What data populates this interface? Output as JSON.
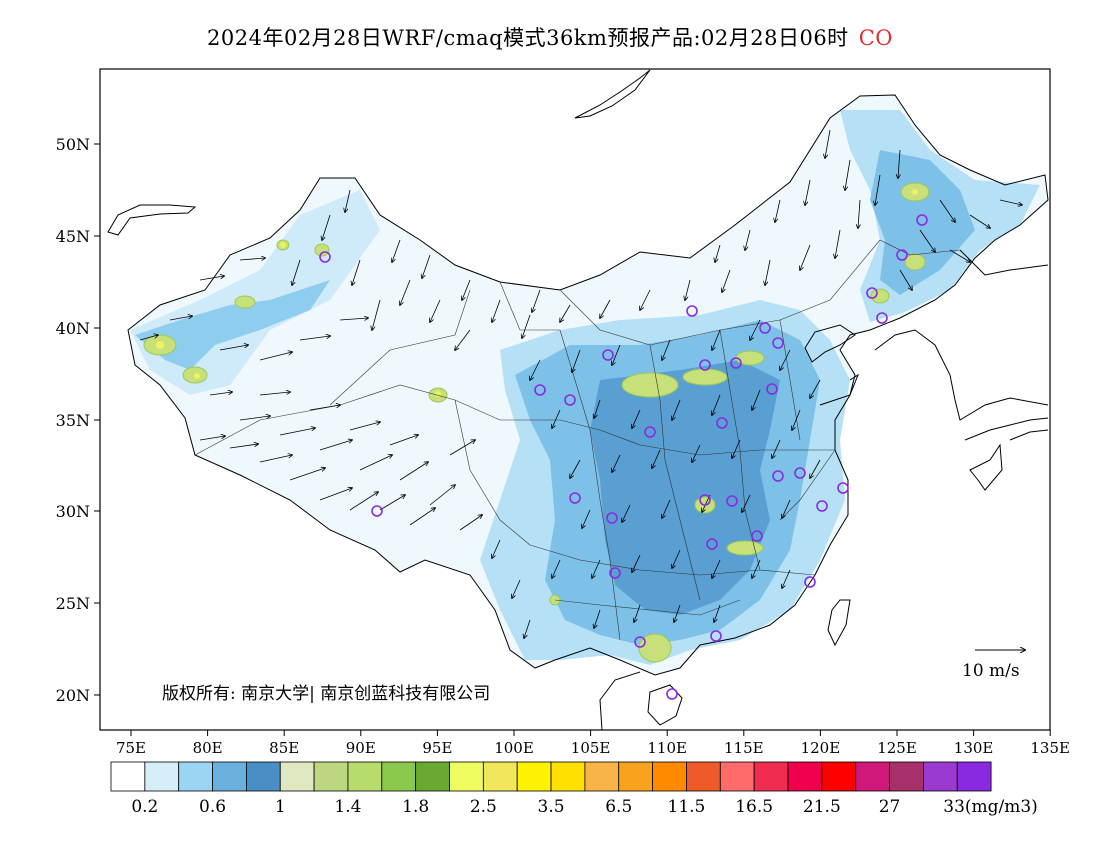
{
  "title": {
    "main": "2024年02月28日WRF/cmaq模式36km预报产品:02月28日06时",
    "species": "CO"
  },
  "axes": {
    "lat_labels": [
      "50N",
      "45N",
      "40N",
      "35N",
      "30N",
      "25N",
      "20N"
    ],
    "lon_labels": [
      "75E",
      "80E",
      "85E",
      "90E",
      "95E",
      "100E",
      "105E",
      "110E",
      "115E",
      "120E",
      "125E",
      "130E",
      "135E"
    ]
  },
  "copyright": {
    "text": "版权所有: 南京大学| 南京创蓝科技有限公司"
  },
  "wind_reference": {
    "label": "10 m/s"
  },
  "legend": {
    "colors": [
      "#ffffff",
      "#d6eefa",
      "#9ad6f4",
      "#6ab0de",
      "#4a8ec6",
      "#dfe8c0",
      "#bcd77f",
      "#b8dc6c",
      "#8cc84c",
      "#6aa832",
      "#eefc60",
      "#f2e65a",
      "#fff200",
      "#ffe000",
      "#f8b448",
      "#f8a21e",
      "#ff8a00",
      "#f05a28",
      "#ff6a6a",
      "#f02c50",
      "#f0004c",
      "#ff0000",
      "#d0187a",
      "#a8306a",
      "#9a3ad0",
      "#8a2ae0"
    ],
    "labels": [
      "0.2",
      "0.6",
      "1",
      "1.4",
      "1.8",
      "2.5",
      "3.5",
      "6.5",
      "11.5",
      "16.5",
      "21.5",
      "27",
      "33(mg/m3)"
    ]
  },
  "stations": {
    "color": "#8a2be2"
  }
}
